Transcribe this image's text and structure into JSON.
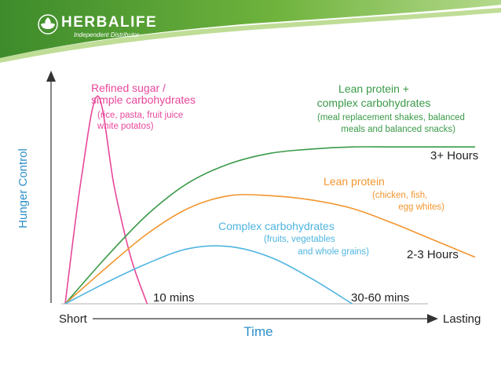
{
  "brand": {
    "name": "HERBALIFE",
    "subtitle": "Independent Distributor",
    "colors": {
      "green_dark": "#3d8b2b",
      "green_light": "#8cc63f"
    }
  },
  "chart_data": {
    "type": "line",
    "xlabel": "Time",
    "ylabel": "Hunger Control",
    "x_start_label": "Short",
    "x_end_label": "Lasting",
    "x": [
      0,
      10,
      20,
      30,
      40,
      50,
      60,
      70,
      80,
      90,
      100
    ],
    "ylim": [
      0,
      100
    ],
    "series": [
      {
        "name": "Refined sugar / simple carbohydrates",
        "notes": [
          "(rice, pasta, fruit juice",
          "white potatos)"
        ],
        "duration": "10 mins",
        "color": "#e8479a",
        "points": [
          [
            0,
            0
          ],
          [
            4,
            60
          ],
          [
            8,
            98
          ],
          [
            12,
            55
          ],
          [
            16,
            22
          ],
          [
            20,
            0
          ]
        ]
      },
      {
        "name": "Lean protein + complex carbohydrates",
        "notes": [
          "(meal replacement shakes, balanced",
          "meals and balanced snacks)"
        ],
        "duration": "3+ Hours",
        "color": "#3a9a48",
        "points": [
          [
            0,
            0
          ],
          [
            10,
            22
          ],
          [
            20,
            42
          ],
          [
            30,
            57
          ],
          [
            40,
            66
          ],
          [
            50,
            71
          ],
          [
            60,
            73
          ],
          [
            70,
            74
          ],
          [
            80,
            74
          ],
          [
            90,
            74
          ],
          [
            100,
            74
          ]
        ]
      },
      {
        "name": "Lean protein",
        "notes": [
          "(chicken, fish,",
          "egg whites)"
        ],
        "duration": "2-3 Hours",
        "color": "#f2962f",
        "points": [
          [
            0,
            0
          ],
          [
            10,
            17
          ],
          [
            20,
            33
          ],
          [
            30,
            45
          ],
          [
            40,
            51
          ],
          [
            50,
            51
          ],
          [
            60,
            49
          ],
          [
            70,
            45
          ],
          [
            80,
            38
          ],
          [
            90,
            30
          ],
          [
            100,
            22
          ]
        ]
      },
      {
        "name": "Complex carbohydrates",
        "notes": [
          "(fruits, vegetables",
          "and whole grains)"
        ],
        "duration": "30-60 mins",
        "color": "#4fb5e0",
        "points": [
          [
            0,
            0
          ],
          [
            10,
            10
          ],
          [
            20,
            19
          ],
          [
            30,
            26
          ],
          [
            40,
            27
          ],
          [
            50,
            22
          ],
          [
            60,
            12
          ],
          [
            70,
            0
          ]
        ]
      }
    ]
  }
}
